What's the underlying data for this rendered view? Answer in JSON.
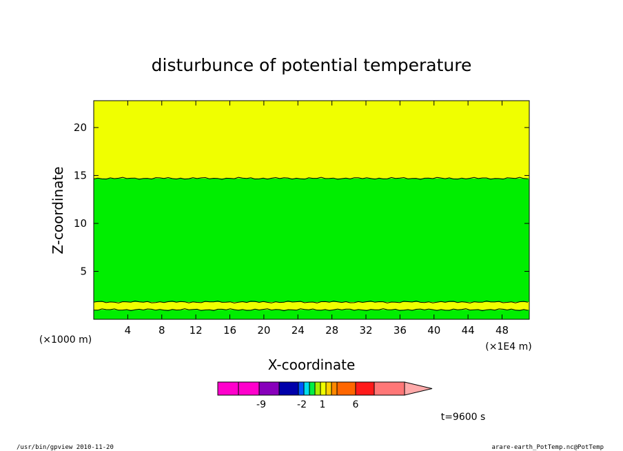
{
  "chart_data": {
    "type": "heatmap",
    "title": "disturbunce of potential temperature",
    "xlabel": "X-coordinate",
    "ylabel": "Z-coordinate",
    "x_unit": "(×1E4 m)",
    "y_unit": "(×1000 m)",
    "xlim": [
      0,
      51.2
    ],
    "ylim": [
      0,
      22.8
    ],
    "x_ticks": [
      4,
      8,
      12,
      16,
      20,
      24,
      28,
      32,
      36,
      40,
      44,
      48
    ],
    "y_ticks": [
      5,
      10,
      15,
      20
    ],
    "bands": [
      {
        "z_from": 0.0,
        "z_to": 1.0,
        "color": "#00ee00"
      },
      {
        "z_from": 1.0,
        "z_to": 1.8,
        "color": "#f0ff00"
      },
      {
        "z_from": 1.8,
        "z_to": 14.7,
        "color": "#00ee00"
      },
      {
        "z_from": 14.7,
        "z_to": 22.8,
        "color": "#f0ff00"
      }
    ],
    "colorbar": {
      "colors": [
        "#ff00cc",
        "#ff00cc",
        "#8800bb",
        "#0000aa",
        "#0055ff",
        "#00ddee",
        "#00ee44",
        "#aaee00",
        "#f0ff00",
        "#ffd000",
        "#ff8800",
        "#ff6600",
        "#ff1a1a",
        "#ff7777",
        "#ffaaaa"
      ],
      "labels": [
        "-9",
        "-2",
        "1",
        "6"
      ]
    },
    "time_label": "t=9600 s"
  },
  "footer": {
    "left": "/usr/bin/gpview   2010-11-20",
    "right": "arare-earth_PotTemp.nc@PotTemp"
  }
}
